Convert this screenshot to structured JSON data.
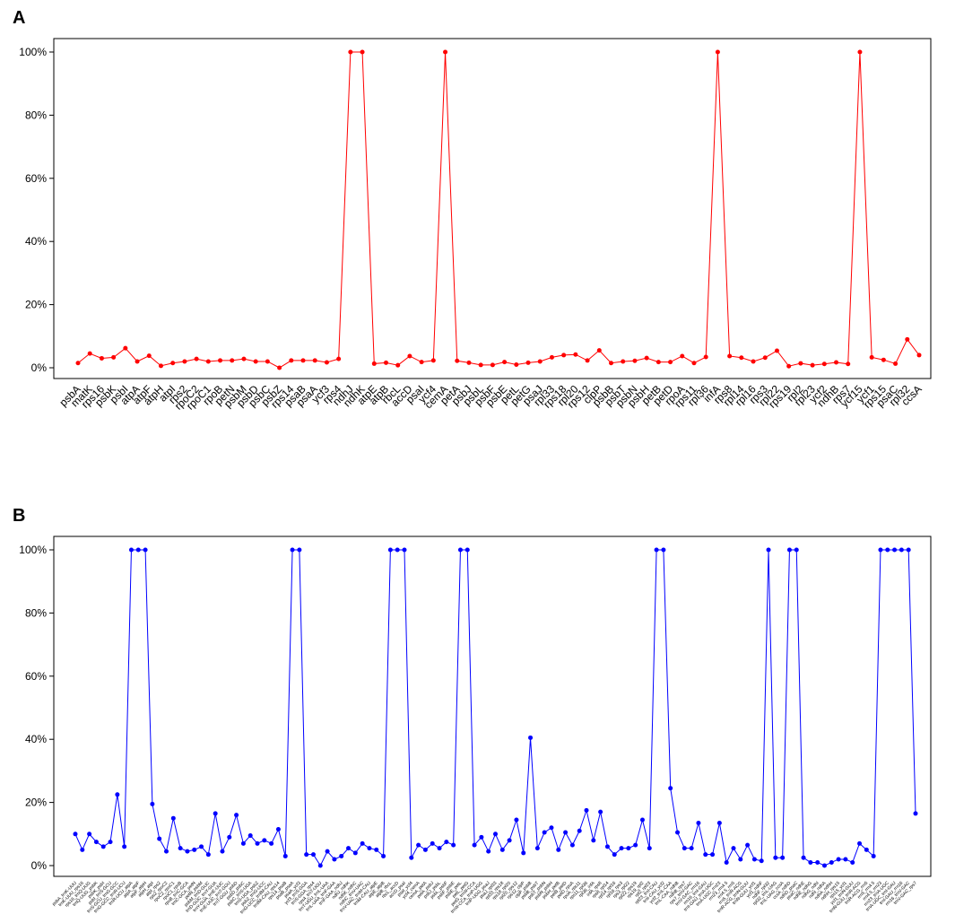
{
  "chart_data": [
    {
      "type": "line",
      "title": "A",
      "color": "#ff0000",
      "categories": [
        "psbA",
        "matK",
        "rps16",
        "psbK",
        "psbI",
        "atpA",
        "atpF",
        "atpH",
        "atpI",
        "rps2",
        "rpoC2",
        "rpoC1",
        "rpoB",
        "petN",
        "psbM",
        "psbD",
        "psbC",
        "psbZ",
        "rps14",
        "psaB",
        "psaA",
        "ycf3",
        "rps4",
        "ndhJ",
        "ndhK",
        "atpE",
        "atpB",
        "rbcL",
        "accD",
        "psaI",
        "ycf4",
        "cemA",
        "petA",
        "psbJ",
        "psbL",
        "psbF",
        "psbE",
        "petL",
        "petG",
        "psaJ",
        "rpl33",
        "rps18",
        "rpl20",
        "rps12",
        "clpP",
        "psbB",
        "psbT",
        "psbN",
        "psbH",
        "petB",
        "petD",
        "rpoA",
        "rps11",
        "rpl36",
        "infA",
        "rps8",
        "rpl14",
        "rpl16",
        "rps3",
        "rpl22",
        "rps19",
        "rpl2",
        "rpl23",
        "ycf2",
        "ndhB",
        "rps7",
        "ycf15",
        "ycf1",
        "rps15",
        "psaC",
        "rpl32",
        "ccsA"
      ],
      "values": [
        1.5,
        4.5,
        3,
        3.3,
        6.2,
        2,
        3.8,
        0.6,
        1.5,
        2,
        2.8,
        2,
        2.3,
        2.3,
        2.8,
        2,
        2,
        0,
        2.3,
        2.3,
        2.3,
        1.7,
        2.8,
        100,
        100,
        1.3,
        1.6,
        0.8,
        3.7,
        1.8,
        2.3,
        100,
        2.2,
        1.6,
        0.9,
        0.9,
        1.8,
        1,
        1.6,
        2,
        3.3,
        4,
        4.2,
        2.3,
        5.5,
        1.5,
        2,
        2.2,
        3.1,
        1.8,
        1.8,
        3.7,
        1.5,
        3.4,
        100,
        3.7,
        3.2,
        2,
        3.2,
        5.4,
        0.5,
        1.4,
        0.8,
        1.2,
        1.7,
        1.2,
        100,
        3.3,
        2.5,
        1.3,
        9,
        4
      ],
      "ylim": [
        0,
        100
      ],
      "yticks": [
        {
          "value": 0,
          "label": "0%"
        },
        {
          "value": 20,
          "label": "20%"
        },
        {
          "value": 40,
          "label": "40%"
        },
        {
          "value": 60,
          "label": "60%"
        },
        {
          "value": 80,
          "label": "80%"
        },
        {
          "value": 100,
          "label": "100%"
        }
      ]
    },
    {
      "type": "line",
      "title": "B",
      "color": "#0000ff",
      "categories": [
        "psbA_trnK-UUU",
        "trnK-UUU_rps16",
        "rps16_trnQ-UUG",
        "trnQ-UUG_psbK",
        "psbK_psbI",
        "psbI_trnS-GCU",
        "trnS-GCU_trnG-GCC",
        "trnG-GCC_trnR-UCU",
        "trnR-UCU_atpA",
        "atpA_atpF",
        "atpF_atpH",
        "atpH_atpI",
        "atpI_rps2",
        "rps2_rpoC2",
        "rpoC2_rpoC1",
        "rpoC1_rpoB",
        "rpoB_trnC-GCA",
        "trnC-GCA_petN",
        "petN_psbM",
        "psbM_trnD-GUC",
        "trnD-GUC_trnY-GUA",
        "trnY-GUA_trnE-UUC",
        "trnE-UUC_trnT-GGU",
        "trnT-GGU_psbD",
        "psbD_psbC",
        "psbC_trnS-UGA",
        "trnS-UGA_psbZ",
        "psbZ_trnG-UCC",
        "trnG-UCC_trnfM-CAU",
        "trnfM-CAU_rps14",
        "rps14_psaB",
        "psaB_psaA",
        "psaA_ycf3",
        "ycf3_trnS-GGA",
        "trnS-GGA_rps4",
        "rps4_trnT-UGU",
        "trnT-UGU_trnL-UAA",
        "trnL-UAA_trnF-GAA",
        "trnF-GAA_ndhJ",
        "ndhJ_ndhK",
        "ndhK_ndhC",
        "ndhC_trnV-UAC",
        "trnV-UAC_trnM-CAU",
        "trnM-CAU_atpE",
        "atpE_atpB",
        "atpB_rbcL",
        "rbcL_accD",
        "accD_psaI",
        "psaI_ycf4",
        "ycf4_cemA",
        "cemA_petA",
        "petA_psbJ",
        "psbJ_psbL",
        "psbL_psbF",
        "psbF_psbE",
        "psbE_petL",
        "petL_petG",
        "petG_trnW-CCA",
        "trnW-CCA_trnP-UGG",
        "trnP-UGG_psaJ",
        "psaJ_rpl33",
        "rpl33_rps18",
        "rps18_rpl20",
        "rpl20_rps12",
        "rps12_clpP",
        "clpP_psbB",
        "psbB_psbT",
        "psbT_psbN",
        "psbN_psbH",
        "psbH_petB",
        "petB_petD",
        "petD_rpoA",
        "rpoA_rps11",
        "rps11_rpl36",
        "rpl36_infA",
        "infA_rps8",
        "rps8_rpl14",
        "rpl14_rpl16",
        "rpl16_rps3",
        "rps3_rpl22",
        "rpl22_rps19",
        "rps19_rpl2",
        "rpl2_rpl23",
        "rpl23_trnI-CAU",
        "trnI-CAU_ycf2",
        "ycf2_trnL-CAA",
        "trnL-CAA_ndhB",
        "ndhB_rps7",
        "rps7_trnV-GAC",
        "trnV-GAC_rrn16",
        "rrn16_trnI-GAU",
        "trnI-GAU_trnA-UGC",
        "trnA-UGC_rrn23",
        "rrn23_rrn4.5",
        "rrn4.5_rrn5",
        "rrn5_trnR-ACG",
        "trnR-ACG_trnN-GUU",
        "trnN-GUU_ycf1",
        "ycf1_ndhF",
        "ndhF_rpl32",
        "rpl32_trnL-UAG",
        "trnL-UAG_ccsA",
        "ccsA_ndhD",
        "ndhD_psaC",
        "psaC_ndhE",
        "ndhE_ndhG",
        "ndhG_ndhI",
        "ndhI_ndhA",
        "ndhA_ndhH",
        "ndhH_rps15",
        "rps15_ycf1",
        "ycf1_trnN-GUU",
        "trnN-GUU_trnR-ACG",
        "trnR-ACG_rrn5",
        "rrn5_rrn4.5",
        "rrn4.5_rrn23",
        "rrn23_trnA-UGC",
        "trnA-UGC_trnI-GAU",
        "trnI-GAU_rrn16",
        "rrn16_trnV-GAC",
        "trnV-GAC_rps7"
      ],
      "values": [
        10,
        5,
        10,
        7.5,
        6,
        7.5,
        22.5,
        6,
        100,
        100,
        100,
        19.5,
        8.5,
        4.5,
        15,
        5.5,
        4.5,
        5,
        6,
        3.5,
        16.5,
        4.5,
        9,
        16,
        7,
        9.5,
        7,
        8,
        7,
        11.5,
        3,
        100,
        100,
        3.5,
        3.5,
        0,
        4.5,
        2,
        3,
        5.5,
        4,
        7,
        5.5,
        5,
        3,
        100,
        100,
        100,
        2.5,
        6.5,
        5,
        7,
        5.5,
        7.5,
        6.5,
        100,
        100,
        6.5,
        9,
        4.5,
        10,
        5,
        8,
        14.5,
        4,
        40.5,
        5.5,
        10.5,
        12,
        5,
        10.5,
        6.5,
        11,
        17.5,
        8,
        17,
        6,
        3.5,
        5.5,
        5.5,
        6.5,
        14.5,
        5.5,
        100,
        100,
        24.5,
        10.5,
        5.5,
        5.5,
        13.5,
        3.5,
        3.5,
        13.5,
        1,
        5.5,
        2,
        6.5,
        2,
        1.5,
        100,
        2.5,
        2.5,
        100,
        100,
        2.5,
        1,
        1,
        0,
        1,
        2,
        2,
        1,
        7,
        5,
        3,
        100,
        100,
        100,
        100,
        100,
        16.5
      ],
      "ylim": [
        0,
        100
      ],
      "yticks": [
        {
          "value": 0,
          "label": "0%"
        },
        {
          "value": 20,
          "label": "20%"
        },
        {
          "value": 40,
          "label": "40%"
        },
        {
          "value": 60,
          "label": "60%"
        },
        {
          "value": 80,
          "label": "80%"
        },
        {
          "value": 100,
          "label": "100%"
        }
      ]
    }
  ]
}
